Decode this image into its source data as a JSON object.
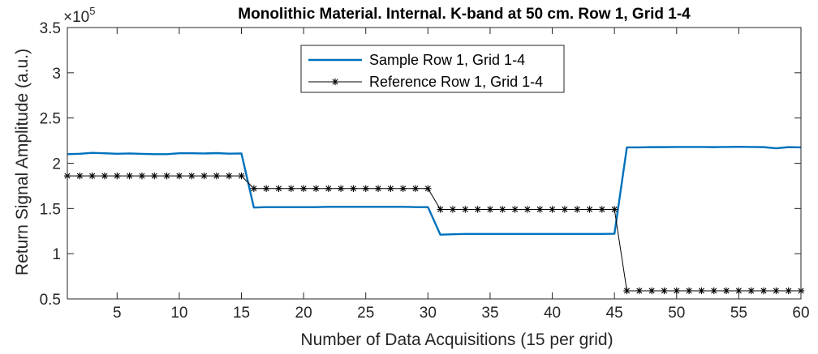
{
  "chart_data": {
    "type": "line",
    "title": "Monolithic Material. Internal. K-band at 50 cm. Row 1, Grid 1-4",
    "xlabel": "Number of Data Acquisitions (15 per grid)",
    "ylabel": "Return Signal Amplitude (a.u.)",
    "y_exponent_label": "×10",
    "y_exponent_power": "5",
    "xlim": [
      1,
      60
    ],
    "ylim": [
      0.5,
      3.5
    ],
    "x_ticks": [
      5,
      10,
      15,
      20,
      25,
      30,
      35,
      40,
      45,
      50,
      55,
      60
    ],
    "y_ticks": [
      0.5,
      1,
      1.5,
      2,
      2.5,
      3,
      3.5
    ],
    "grid": false,
    "legend_position": "top-center",
    "series": [
      {
        "name": "Sample Row 1, Grid 1-4",
        "color": "#0072BD",
        "marker": "none",
        "x": [
          1,
          2,
          3,
          4,
          5,
          6,
          7,
          8,
          9,
          10,
          11,
          12,
          13,
          14,
          15,
          16,
          17,
          18,
          19,
          20,
          21,
          22,
          23,
          24,
          25,
          26,
          27,
          28,
          29,
          30,
          31,
          32,
          33,
          34,
          35,
          36,
          37,
          38,
          39,
          40,
          41,
          42,
          43,
          44,
          45,
          46,
          47,
          48,
          49,
          50,
          51,
          52,
          53,
          54,
          55,
          56,
          57,
          58,
          59,
          60
        ],
        "values": [
          2.1,
          2.105,
          2.115,
          2.11,
          2.105,
          2.108,
          2.104,
          2.1,
          2.1,
          2.11,
          2.11,
          2.108,
          2.112,
          2.106,
          2.108,
          1.51,
          1.515,
          1.515,
          1.515,
          1.515,
          1.515,
          1.518,
          1.518,
          1.518,
          1.518,
          1.518,
          1.518,
          1.518,
          1.515,
          1.515,
          1.21,
          1.215,
          1.218,
          1.218,
          1.218,
          1.218,
          1.218,
          1.218,
          1.218,
          1.218,
          1.218,
          1.218,
          1.218,
          1.218,
          1.22,
          2.175,
          2.175,
          2.178,
          2.178,
          2.18,
          2.18,
          2.18,
          2.178,
          2.18,
          2.182,
          2.18,
          2.178,
          2.165,
          2.178,
          2.175
        ]
      },
      {
        "name": "Reference Row 1, Grid 1-4",
        "color": "#000000",
        "marker": "*",
        "x": [
          1,
          2,
          3,
          4,
          5,
          6,
          7,
          8,
          9,
          10,
          11,
          12,
          13,
          14,
          15,
          16,
          17,
          18,
          19,
          20,
          21,
          22,
          23,
          24,
          25,
          26,
          27,
          28,
          29,
          30,
          31,
          32,
          33,
          34,
          35,
          36,
          37,
          38,
          39,
          40,
          41,
          42,
          43,
          44,
          45,
          46,
          47,
          48,
          49,
          50,
          51,
          52,
          53,
          54,
          55,
          56,
          57,
          58,
          59,
          60
        ],
        "values": [
          1.86,
          1.86,
          1.86,
          1.86,
          1.86,
          1.86,
          1.86,
          1.86,
          1.86,
          1.86,
          1.86,
          1.86,
          1.86,
          1.86,
          1.86,
          1.72,
          1.72,
          1.72,
          1.72,
          1.72,
          1.72,
          1.72,
          1.72,
          1.72,
          1.72,
          1.72,
          1.72,
          1.72,
          1.72,
          1.72,
          1.49,
          1.49,
          1.49,
          1.49,
          1.49,
          1.49,
          1.49,
          1.49,
          1.49,
          1.49,
          1.49,
          1.49,
          1.49,
          1.49,
          1.49,
          0.59,
          0.59,
          0.59,
          0.59,
          0.59,
          0.59,
          0.59,
          0.59,
          0.59,
          0.59,
          0.59,
          0.59,
          0.59,
          0.59,
          0.59
        ]
      }
    ]
  }
}
